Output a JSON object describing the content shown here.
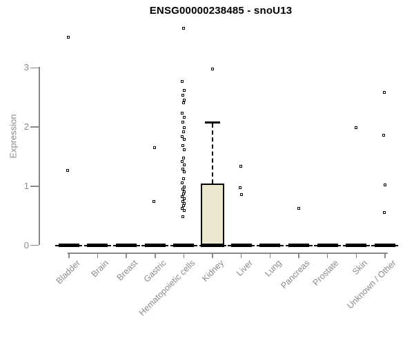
{
  "chart_data": {
    "type": "boxplot",
    "title": "ENSG00000238485 - snoU13",
    "xlabel": "",
    "ylabel": "Expression",
    "ylim": [
      0,
      3
    ],
    "yticks": [
      0,
      1,
      2,
      3
    ],
    "grid": false,
    "legend": null,
    "categories": [
      "Bladder",
      "Brain",
      "Breast",
      "Gastric",
      "Hematopoietic cells",
      "Kidney",
      "Liver",
      "Lung",
      "Pancreas",
      "Prostate",
      "Skin",
      "Unknown / Other"
    ],
    "boxes": [
      {
        "category": "Bladder",
        "q1": 0,
        "median": 0,
        "q3": 0,
        "whisker_low": 0,
        "whisker_high": 0,
        "outliers": [
          3.51,
          1.26
        ]
      },
      {
        "category": "Brain",
        "q1": 0,
        "median": 0,
        "q3": 0,
        "whisker_low": 0,
        "whisker_high": 0,
        "outliers": []
      },
      {
        "category": "Breast",
        "q1": 0,
        "median": 0,
        "q3": 0,
        "whisker_low": 0,
        "whisker_high": 0,
        "outliers": []
      },
      {
        "category": "Gastric",
        "q1": 0,
        "median": 0,
        "q3": 0,
        "whisker_low": 0,
        "whisker_high": 0,
        "outliers": [
          1.64,
          0.73
        ]
      },
      {
        "category": "Hematopoietic cells",
        "q1": 0,
        "median": 0,
        "q3": 0,
        "whisker_low": 0,
        "whisker_high": 0,
        "outliers": [
          3.66,
          2.77,
          2.61,
          2.53,
          2.45,
          2.4,
          2.23,
          2.16,
          2.08,
          1.98,
          1.91,
          1.83,
          1.79,
          1.68,
          1.61,
          1.47,
          1.41,
          1.35,
          1.28,
          1.24,
          1.12,
          1.05,
          0.98,
          0.94,
          0.9,
          0.86,
          0.82,
          0.78,
          0.74,
          0.7,
          0.66,
          0.62,
          0.58,
          0.48
        ]
      },
      {
        "category": "Kidney",
        "q1": 0,
        "median": 0,
        "q3": 1.04,
        "whisker_low": 0,
        "whisker_high": 2.08,
        "outliers": [
          2.97
        ]
      },
      {
        "category": "Liver",
        "q1": 0,
        "median": 0,
        "q3": 0,
        "whisker_low": 0,
        "whisker_high": 0,
        "outliers": [
          1.33,
          0.97,
          0.85
        ]
      },
      {
        "category": "Lung",
        "q1": 0,
        "median": 0,
        "q3": 0,
        "whisker_low": 0,
        "whisker_high": 0,
        "outliers": []
      },
      {
        "category": "Pancreas",
        "q1": 0,
        "median": 0,
        "q3": 0,
        "whisker_low": 0,
        "whisker_high": 0,
        "outliers": [
          0.62
        ]
      },
      {
        "category": "Prostate",
        "q1": 0,
        "median": 0,
        "q3": 0,
        "whisker_low": 0,
        "whisker_high": 0,
        "outliers": []
      },
      {
        "category": "Skin",
        "q1": 0,
        "median": 0,
        "q3": 0,
        "whisker_low": 0,
        "whisker_high": 0,
        "outliers": [
          1.98
        ]
      },
      {
        "category": "Unknown / Other",
        "q1": 0,
        "median": 0,
        "q3": 0,
        "whisker_low": 0,
        "whisker_high": 0,
        "outliers": [
          2.58,
          1.86,
          1.02,
          0.55
        ]
      }
    ],
    "colors": {
      "box_fill": "#ECE7CF",
      "box_border": "#000000",
      "point": "#000000",
      "axis": "#888888",
      "tick_label": "#8a8a8a",
      "title": "#000000",
      "background": "#ffffff"
    }
  }
}
